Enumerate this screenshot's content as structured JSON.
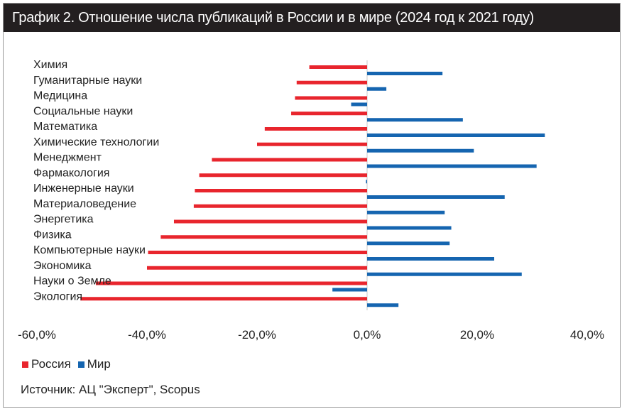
{
  "title": "График 2. Отношение числа публикаций в России и в мире (2024 год к 2021 году)",
  "source": "Источник: АЦ \"Эксперт\", Scopus",
  "colors": {
    "russia": "#e8252d",
    "world": "#1565b0"
  },
  "chart_data": {
    "type": "bar",
    "orientation": "horizontal",
    "categories": [
      "Химия",
      "Гуманитарные науки",
      "Медицина",
      "Социальные науки",
      "Математика",
      "Химические технологии",
      "Менеджмент",
      "Фармакология",
      "Инженерные науки",
      "Материаловедение",
      "Энергетика",
      "Физика",
      "Компьютерные науки",
      "Экономика",
      "Науки о Земле",
      "Экология"
    ],
    "series": [
      {
        "name": "Россия",
        "values": [
          -10.5,
          -12.8,
          -13.1,
          -13.8,
          -18.6,
          -20.0,
          -28.2,
          -30.5,
          -31.3,
          -31.5,
          -35.1,
          -37.5,
          -39.8,
          -40.0,
          -49.3,
          -52.1
        ]
      },
      {
        "name": "Мир",
        "values": [
          13.7,
          3.5,
          -2.9,
          17.4,
          32.3,
          19.4,
          30.8,
          -0.2,
          25.0,
          14.1,
          15.3,
          15.0,
          23.1,
          28.1,
          -6.3,
          5.7
        ]
      }
    ],
    "xlim": [
      -60,
      40
    ],
    "xticks": [
      "-60,0%",
      "-40,0%",
      "-20,0%",
      "0,0%",
      "20,0%",
      "40,0%"
    ],
    "xtick_values": [
      -60,
      -40,
      -20,
      0,
      20,
      40
    ],
    "grid": false,
    "legend_position": "bottom-left"
  }
}
